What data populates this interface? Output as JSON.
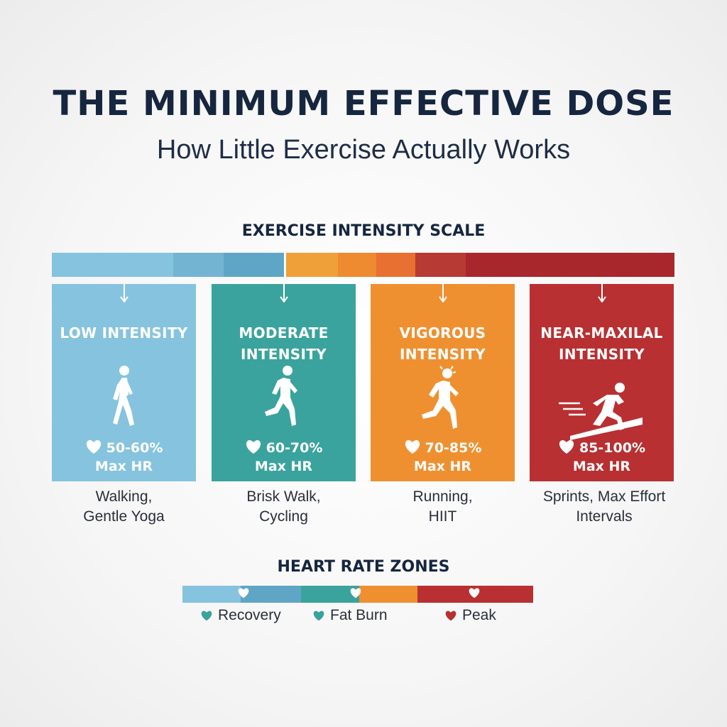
{
  "header": {
    "title": "THE MINIMUM EFFECTIVE DOSE",
    "subtitle": "How Little Exercise Actually Works"
  },
  "scale": {
    "title": "EXERCISE INTENSITY SCALE",
    "colors": [
      "#86c3de",
      "#74b4d3",
      "#5fa6c6",
      "#f0a038",
      "#ee8a30",
      "#e87030",
      "#b83a34",
      "#a8272c"
    ]
  },
  "cards": [
    {
      "name": "LOW INTENSITY",
      "hr_range": "50-60%",
      "hr_unit": "Max HR",
      "activities": [
        "Walking,",
        "Gentle Yoga"
      ],
      "color": "#86c3de",
      "icon": "walking-person-icon"
    },
    {
      "name": "MODERATE INTENSITY",
      "hr_range": "60-70%",
      "hr_unit": "Max HR",
      "activities": [
        "Brisk Walk,",
        "Cycling"
      ],
      "color": "#3aa39d",
      "icon": "jogging-person-icon"
    },
    {
      "name": "VIGOROUS INTENSITY",
      "hr_range": "70-85%",
      "hr_unit": "Max HR",
      "activities": [
        "Running,",
        "HIIT"
      ],
      "color": "#ef9030",
      "icon": "running-person-icon"
    },
    {
      "name": "NEAR-MAXILAL INTENSITY",
      "hr_range": "85-100%",
      "hr_unit": "Max HR",
      "activities": [
        "Sprints, Max Effort",
        "Intervals"
      ],
      "color": "#b83032",
      "icon": "sprinting-person-icon"
    }
  ],
  "zones": {
    "title": "HEART RATE ZONES",
    "legend": [
      {
        "label": "Recovery",
        "color": "#3aa39d"
      },
      {
        "label": "Fat Burn",
        "color": "#3aa39d"
      },
      {
        "label": "Peak",
        "color": "#b83032"
      }
    ],
    "bar_colors": [
      "#86c3de",
      "#5fa6c6",
      "#3aa39d",
      "#ef9030",
      "#b83032"
    ]
  }
}
